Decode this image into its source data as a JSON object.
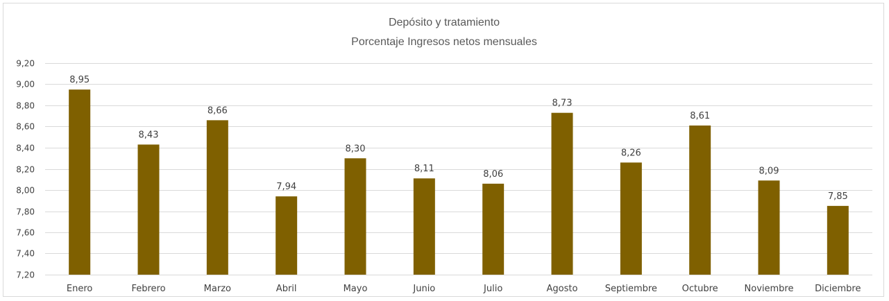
{
  "chart_data": {
    "type": "bar",
    "title": "Depósito y tratamiento",
    "subtitle": "Porcentaje Ingresos netos mensuales",
    "categories": [
      "Enero",
      "Febrero",
      "Marzo",
      "Abril",
      "Mayo",
      "Junio",
      "Julio",
      "Agosto",
      "Septiembre",
      "Octubre",
      "Noviembre",
      "Diciembre"
    ],
    "values": [
      8.95,
      8.43,
      8.66,
      7.94,
      8.3,
      8.11,
      8.06,
      8.73,
      8.26,
      8.61,
      8.09,
      7.85
    ],
    "value_labels": [
      "8,95",
      "8,43",
      "8,66",
      "7,94",
      "8,30",
      "8,11",
      "8,06",
      "8,73",
      "8,26",
      "8,61",
      "8,09",
      "7,85"
    ],
    "ylim": [
      7.2,
      9.2
    ],
    "yticks": [
      7.2,
      7.4,
      7.6,
      7.8,
      8.0,
      8.2,
      8.4,
      8.6,
      8.8,
      9.0,
      9.2
    ],
    "ytick_labels": [
      "7,20",
      "7,40",
      "7,60",
      "7,80",
      "8,00",
      "8,20",
      "8,40",
      "8,60",
      "8,80",
      "9,00",
      "9,20"
    ],
    "xlabel": "",
    "ylabel": "",
    "grid": true,
    "legend": "none",
    "bar_color": "#7f6000",
    "grid_color": "#d9d9d9",
    "text_color": "#404040",
    "title_color": "#595959"
  }
}
